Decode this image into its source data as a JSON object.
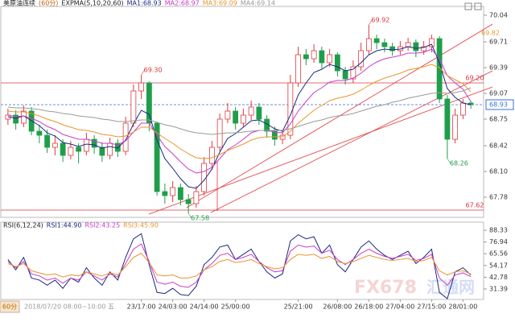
{
  "chart_data": {
    "type": "candlestick",
    "title": "美原油连续",
    "period": "(60分)",
    "indicator": "EXPMA(5,10,20,60)",
    "categories": [
      null,
      null,
      null,
      null,
      null,
      null,
      null,
      null,
      null,
      null,
      null,
      null,
      null,
      null,
      null,
      null,
      null,
      "23/17:00",
      null,
      null,
      null,
      "24/03:00",
      null,
      null,
      null,
      "24/14:00",
      null,
      null,
      null,
      "25/00:00",
      null,
      null,
      null,
      null,
      null,
      null,
      null,
      "25/21:00",
      null,
      null,
      null,
      null,
      "26/08:00",
      null,
      null,
      null,
      "26/18:00",
      null,
      null,
      null,
      "27/04:00",
      null,
      null,
      null,
      "27/15:00",
      null,
      null,
      null,
      "28/01:00",
      null
    ],
    "open": [
      68.75,
      68.8,
      68.7,
      68.85,
      68.6,
      68.55,
      68.4,
      68.45,
      68.3,
      68.4,
      68.35,
      68.5,
      68.4,
      68.3,
      68.45,
      68.35,
      68.7,
      69.1,
      69.2,
      68.7,
      67.85,
      67.8,
      67.9,
      67.75,
      67.7,
      67.85,
      68.2,
      68.4,
      68.75,
      68.85,
      68.7,
      68.8,
      68.9,
      68.75,
      68.6,
      68.5,
      68.55,
      69.2,
      69.55,
      69.5,
      69.6,
      69.45,
      69.55,
      69.35,
      69.25,
      69.4,
      69.6,
      69.75,
      69.7,
      69.65,
      69.6,
      69.65,
      69.7,
      69.6,
      69.65,
      69.75,
      69.0,
      68.5,
      68.8,
      68.95
    ],
    "high": [
      68.88,
      68.86,
      68.92,
      68.9,
      68.68,
      68.62,
      68.55,
      68.5,
      68.48,
      68.45,
      68.58,
      68.55,
      68.46,
      68.52,
      68.5,
      68.78,
      69.18,
      69.3,
      69.22,
      68.72,
      67.95,
      67.98,
      67.95,
      67.82,
      67.92,
      68.28,
      68.48,
      68.82,
      68.95,
      68.9,
      68.88,
      68.98,
      68.95,
      68.8,
      68.66,
      68.62,
      69.3,
      69.65,
      69.62,
      69.68,
      69.65,
      69.62,
      69.58,
      69.4,
      69.48,
      69.7,
      69.92,
      69.8,
      69.75,
      69.7,
      69.72,
      69.76,
      69.74,
      69.72,
      69.8,
      69.78,
      69.05,
      68.88,
      69.0,
      68.98
    ],
    "low": [
      68.68,
      68.62,
      68.65,
      68.55,
      68.45,
      68.33,
      68.3,
      68.22,
      68.25,
      68.2,
      68.3,
      68.32,
      68.22,
      68.25,
      68.28,
      68.3,
      68.65,
      69.0,
      68.6,
      67.8,
      67.7,
      67.72,
      67.68,
      67.58,
      67.65,
      67.8,
      68.12,
      68.35,
      68.7,
      68.62,
      68.65,
      68.74,
      68.68,
      68.52,
      68.42,
      68.44,
      68.5,
      69.15,
      69.42,
      69.45,
      69.38,
      69.4,
      69.28,
      69.18,
      69.2,
      69.35,
      69.55,
      69.62,
      69.58,
      69.54,
      69.55,
      69.6,
      69.52,
      69.55,
      69.58,
      68.95,
      68.26,
      68.45,
      68.75,
      68.88
    ],
    "close": [
      68.8,
      68.7,
      68.85,
      68.6,
      68.55,
      68.4,
      68.45,
      68.3,
      68.4,
      68.35,
      68.5,
      68.4,
      68.3,
      68.45,
      68.35,
      68.7,
      69.1,
      69.2,
      68.7,
      67.85,
      67.8,
      67.9,
      67.75,
      67.7,
      67.85,
      68.2,
      68.4,
      68.75,
      68.85,
      68.7,
      68.8,
      68.9,
      68.75,
      68.6,
      68.5,
      68.55,
      69.2,
      69.55,
      69.5,
      69.6,
      69.45,
      69.55,
      69.35,
      69.25,
      69.4,
      69.6,
      69.75,
      69.7,
      69.65,
      69.6,
      69.65,
      69.7,
      69.6,
      69.65,
      69.75,
      69.0,
      68.5,
      68.8,
      68.95,
      68.93
    ],
    "up_color": "#e0393e",
    "down_color": "#1e9e4a",
    "series": [
      {
        "name": "MA1:68.93",
        "color": "#1c2a80",
        "values": [
          68.78,
          68.76,
          68.79,
          68.73,
          68.67,
          68.58,
          68.54,
          68.46,
          68.44,
          68.41,
          68.44,
          68.43,
          68.39,
          68.41,
          68.39,
          68.49,
          68.69,
          68.86,
          68.81,
          68.49,
          68.26,
          68.14,
          68.01,
          67.91,
          67.89,
          67.99,
          68.13,
          68.34,
          68.51,
          68.57,
          68.65,
          68.73,
          68.74,
          68.69,
          68.63,
          68.6,
          68.8,
          69.05,
          69.2,
          69.33,
          69.37,
          69.43,
          69.4,
          69.35,
          69.37,
          69.45,
          69.55,
          69.6,
          69.62,
          69.61,
          69.62,
          69.65,
          69.63,
          69.64,
          69.68,
          69.45,
          69.13,
          69.02,
          68.95,
          68.93
        ]
      },
      {
        "name": "MA2:68.97",
        "color": "#c93cc9",
        "values": [
          68.8,
          68.78,
          68.79,
          68.76,
          68.72,
          68.66,
          68.62,
          68.56,
          68.53,
          68.5,
          68.5,
          68.48,
          68.45,
          68.45,
          68.43,
          68.48,
          68.59,
          68.7,
          68.7,
          68.55,
          68.41,
          68.32,
          68.22,
          68.13,
          68.08,
          68.1,
          68.15,
          68.26,
          68.37,
          68.43,
          68.5,
          68.58,
          68.61,
          68.61,
          68.59,
          68.58,
          68.69,
          68.85,
          68.97,
          69.08,
          69.14,
          69.21,
          69.23,
          69.23,
          69.26,
          69.32,
          69.4,
          69.46,
          69.5,
          69.52,
          69.54,
          69.57,
          69.57,
          69.58,
          69.62,
          69.5,
          69.29,
          69.2,
          69.12,
          68.97
        ]
      },
      {
        "name": "MA3:69.09",
        "color": "#e8962e",
        "values": [
          68.85,
          68.84,
          68.84,
          68.82,
          68.79,
          68.75,
          68.72,
          68.68,
          68.65,
          68.62,
          68.61,
          68.59,
          68.56,
          68.55,
          68.53,
          68.54,
          68.59,
          68.65,
          68.65,
          68.58,
          68.51,
          68.45,
          68.38,
          68.32,
          68.27,
          68.26,
          68.27,
          68.31,
          68.36,
          68.4,
          68.44,
          68.49,
          68.52,
          68.53,
          68.53,
          68.53,
          68.6,
          68.7,
          68.78,
          68.86,
          68.92,
          68.98,
          69.01,
          69.03,
          69.06,
          69.11,
          69.17,
          69.22,
          69.26,
          69.29,
          69.32,
          69.36,
          69.38,
          69.4,
          69.43,
          69.39,
          69.29,
          69.24,
          69.19,
          69.09
        ]
      },
      {
        "name": "MA4:69.14",
        "color": "#9a9a9a",
        "values": [
          68.9,
          68.89,
          68.89,
          68.88,
          68.87,
          68.85,
          68.84,
          68.82,
          68.81,
          68.79,
          68.78,
          68.77,
          68.75,
          68.74,
          68.72,
          68.72,
          68.73,
          68.74,
          68.74,
          68.71,
          68.68,
          68.66,
          68.63,
          68.6,
          68.58,
          68.57,
          68.56,
          68.57,
          68.58,
          68.58,
          68.59,
          68.6,
          68.61,
          68.61,
          68.61,
          68.61,
          68.63,
          68.66,
          68.69,
          68.72,
          68.74,
          68.77,
          68.79,
          68.8,
          68.82,
          68.85,
          68.88,
          68.91,
          68.93,
          68.96,
          68.98,
          69.01,
          69.03,
          69.05,
          69.07,
          69.08,
          69.07,
          69.08,
          69.1,
          69.14
        ]
      }
    ],
    "ylim": [
      67.55,
      70.13
    ],
    "yticks": [
      70.04,
      69.71,
      69.39,
      69.07,
      68.75,
      68.42,
      {
        "value": 68.1,
        "label": "68.10"
      },
      67.78
    ],
    "hlines": [
      {
        "value": 69.2,
        "label": "69.20",
        "color": "#d9363b"
      },
      {
        "value": 67.62,
        "label": "67.62",
        "color": "#d9363b"
      },
      {
        "value": 68.93,
        "label": "68.93",
        "color": "#3b6fd4"
      }
    ],
    "annotations": [
      {
        "value": 69.3,
        "label": "69.30"
      },
      {
        "value": 69.92,
        "label": "69.92"
      },
      {
        "value": 69.82,
        "label": "69.82"
      },
      {
        "value": 68.26,
        "label": "68.26"
      },
      {
        "value": 67.58,
        "label": "67.58"
      }
    ],
    "rsi": {
      "title": "RSI(6,12,24)",
      "series": [
        {
          "name": "RSI1:44.90",
          "color": "#1c2a80",
          "values": [
            60,
            50,
            62,
            42,
            40,
            35,
            40,
            32,
            42,
            38,
            52,
            42,
            35,
            48,
            40,
            62,
            80,
            85,
            55,
            28,
            27,
            32,
            26,
            25,
            34,
            55,
            62,
            72,
            74,
            60,
            65,
            70,
            58,
            48,
            42,
            46,
            78,
            84,
            80,
            82,
            66,
            74,
            55,
            48,
            60,
            72,
            78,
            70,
            64,
            60,
            64,
            68,
            56,
            62,
            70,
            28,
            22,
            48,
            52,
            44.9
          ]
        },
        {
          "name": "RSI2:43.25",
          "color": "#c93cc9",
          "values": [
            58,
            52,
            58,
            46,
            44,
            40,
            42,
            37,
            42,
            40,
            48,
            44,
            40,
            46,
            43,
            56,
            70,
            75,
            58,
            38,
            36,
            38,
            34,
            33,
            38,
            50,
            56,
            64,
            66,
            60,
            62,
            65,
            58,
            52,
            48,
            49,
            68,
            74,
            72,
            73,
            66,
            69,
            60,
            55,
            60,
            66,
            70,
            66,
            63,
            61,
            63,
            65,
            59,
            61,
            65,
            42,
            35,
            45,
            47,
            43.25
          ]
        },
        {
          "name": "RSI3:45.90",
          "color": "#e8962e",
          "values": [
            56,
            53,
            56,
            49,
            47,
            45,
            46,
            43,
            45,
            44,
            48,
            46,
            44,
            47,
            45,
            53,
            62,
            66,
            57,
            45,
            44,
            45,
            42,
            42,
            44,
            50,
            53,
            58,
            60,
            57,
            58,
            60,
            56,
            53,
            51,
            52,
            60,
            65,
            64,
            65,
            61,
            63,
            58,
            56,
            58,
            61,
            64,
            62,
            60,
            59,
            60,
            61,
            58,
            59,
            62,
            49,
            45,
            48,
            49,
            45.9
          ]
        }
      ],
      "ylim": [
        21.2,
        94.6
      ],
      "yticks": [
        88.33,
        76.94,
        65.56,
        54.17,
        42.78,
        31.39
      ]
    },
    "status": "2018/07/20 08:00~10:00 五",
    "period_button": "60分",
    "watermark": [
      "FX678",
      "汇通网"
    ]
  }
}
